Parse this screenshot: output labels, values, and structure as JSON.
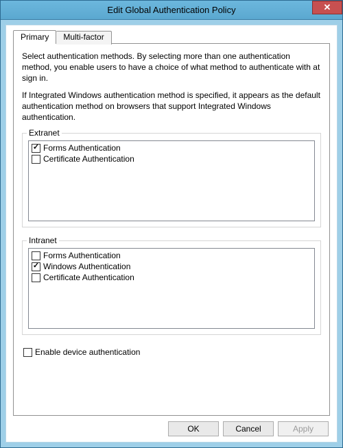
{
  "window": {
    "title": "Edit Global Authentication Policy",
    "close_glyph": "✕"
  },
  "tabs": {
    "primary": "Primary",
    "multifactor": "Multi-factor"
  },
  "desc": {
    "p1": "Select authentication methods. By selecting more than one authentication method, you enable users to have a choice of what method to authenticate with at sign in.",
    "p2": "If Integrated Windows authentication method is specified, it appears as the default authentication method on browsers that support Integrated Windows authentication."
  },
  "groups": {
    "extranet": {
      "legend": "Extranet",
      "items": [
        {
          "label": "Forms Authentication",
          "checked": true
        },
        {
          "label": "Certificate Authentication",
          "checked": false
        }
      ]
    },
    "intranet": {
      "legend": "Intranet",
      "items": [
        {
          "label": "Forms Authentication",
          "checked": false
        },
        {
          "label": "Windows Authentication",
          "checked": true
        },
        {
          "label": "Certificate Authentication",
          "checked": false
        }
      ]
    }
  },
  "device_auth": {
    "label": "Enable device authentication",
    "checked": false
  },
  "buttons": {
    "ok": "OK",
    "cancel": "Cancel",
    "apply": "Apply"
  },
  "colors": {
    "frame": "#9ecfe8",
    "close": "#c75050",
    "border": "#919191"
  }
}
